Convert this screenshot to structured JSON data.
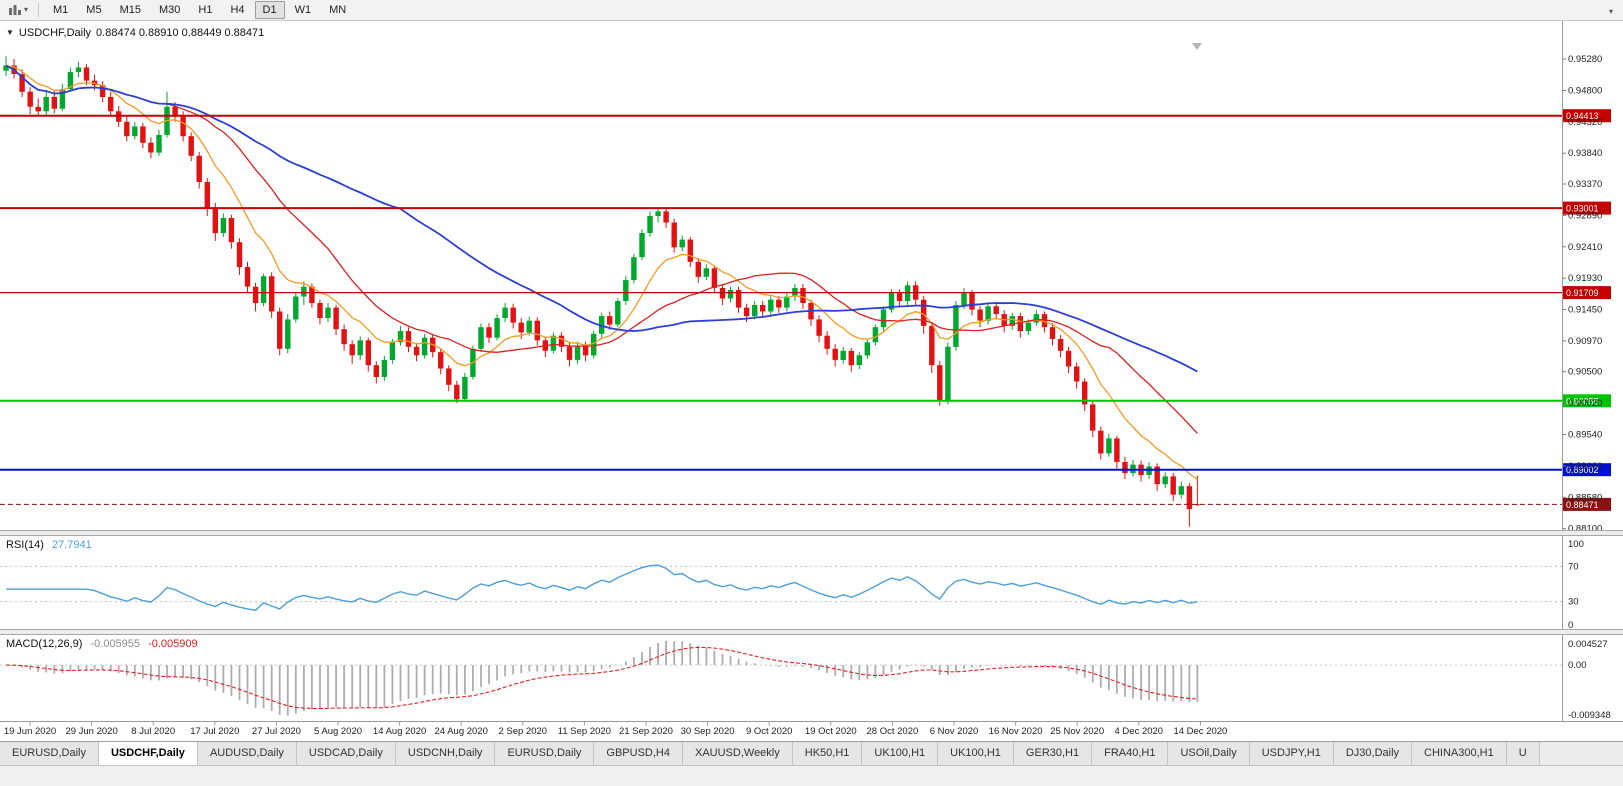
{
  "toolbar": {
    "timeframes": [
      {
        "label": "M1",
        "active": false
      },
      {
        "label": "M5",
        "active": false
      },
      {
        "label": "M15",
        "active": false
      },
      {
        "label": "M30",
        "active": false
      },
      {
        "label": "H1",
        "active": false
      },
      {
        "label": "H4",
        "active": false
      },
      {
        "label": "D1",
        "active": true
      },
      {
        "label": "W1",
        "active": false
      },
      {
        "label": "MN",
        "active": false
      }
    ]
  },
  "chart": {
    "title": "USDCHF,Daily",
    "ohlc_readout": "0.88474 0.88910 0.88449 0.88471"
  },
  "colors": {
    "up": "#00A82D",
    "down": "#E31212",
    "rsi": "#4E9FD8",
    "macd_hist": "#ADADAD",
    "macd_signal": "#DF2020"
  },
  "chart_data": {
    "type": "candlestick",
    "symbol": "USDCHF",
    "timeframe": "Daily",
    "price_range": {
      "max": 0.9554,
      "min": 0.8808
    },
    "price_axis_labels": [
      "0.95280",
      "0.94800",
      "0.94320",
      "0.93840",
      "0.93370",
      "0.92890",
      "0.92410",
      "0.91930",
      "0.91450",
      "0.90970",
      "0.90500",
      "0.90020",
      "0.89540",
      "0.89060",
      "0.88580",
      "0.88100"
    ],
    "date_labels": [
      "19 Jun 2020",
      "29 Jun 2020",
      "8 Jul 2020",
      "17 Jul 2020",
      "27 Jul 2020",
      "5 Aug 2020",
      "14 Aug 2020",
      "24 Aug 2020",
      "2 Sep 2020",
      "11 Sep 2020",
      "21 Sep 2020",
      "30 Sep 2020",
      "9 Oct 2020",
      "19 Oct 2020",
      "28 Oct 2020",
      "6 Nov 2020",
      "16 Nov 2020",
      "25 Nov 2020",
      "4 Dec 2020",
      "14 Dec 2020"
    ],
    "hlines": [
      {
        "price": 0.94413,
        "label": "0.94413",
        "color": "#C40000",
        "width": 2
      },
      {
        "price": 0.93001,
        "label": "0.93001",
        "color": "#C40000",
        "width": 2
      },
      {
        "price": 0.91709,
        "label": "0.91709",
        "color": "#C40000",
        "width": 1.2
      },
      {
        "price": 0.90055,
        "label": "0.90055",
        "color": "#00C400",
        "width": 2
      },
      {
        "price": 0.89002,
        "label": "0.89002",
        "color": "#0010D0",
        "width": 2
      }
    ],
    "current_price": {
      "value": 0.88471,
      "label": "0.88471",
      "color": "#8B1111"
    },
    "moving_averages": [
      {
        "period": 10,
        "type": "ema",
        "color": "#F59A23",
        "width": 1.3
      },
      {
        "period": 21,
        "type": "sma",
        "color": "#DC2020",
        "width": 1.3
      },
      {
        "period": 50,
        "type": "sma",
        "color": "#2B3FD6",
        "width": 1.8
      }
    ],
    "rsi": {
      "label": "RSI(14)",
      "value_text": "27.7941",
      "period": 14,
      "levels": [
        70,
        30
      ],
      "axis_labels": [
        "100",
        "70",
        "30",
        "0"
      ]
    },
    "macd": {
      "label": "MACD(12,26,9)",
      "value_main": "-0.005955",
      "value_signal": "-0.005909",
      "fast": 12,
      "slow": 26,
      "signal": 9,
      "range": {
        "max": 0.004527,
        "min": -0.009348
      },
      "axis_labels": [
        "0.004527",
        "0.00",
        "-0.009348"
      ]
    },
    "candles": [
      [
        0.951,
        0.9532,
        0.9502,
        0.9518
      ],
      [
        0.9518,
        0.9528,
        0.9498,
        0.9505
      ],
      [
        0.9505,
        0.9512,
        0.947,
        0.9478
      ],
      [
        0.9478,
        0.9485,
        0.9444,
        0.9455
      ],
      [
        0.9455,
        0.9468,
        0.9441,
        0.9448
      ],
      [
        0.9448,
        0.9478,
        0.9442,
        0.947
      ],
      [
        0.947,
        0.948,
        0.9445,
        0.9452
      ],
      [
        0.9452,
        0.949,
        0.9448,
        0.9482
      ],
      [
        0.9482,
        0.9515,
        0.9478,
        0.9508
      ],
      [
        0.9508,
        0.9524,
        0.95,
        0.9515
      ],
      [
        0.9515,
        0.952,
        0.9488,
        0.9495
      ],
      [
        0.9495,
        0.9504,
        0.948,
        0.9488
      ],
      [
        0.9488,
        0.9494,
        0.9462,
        0.947
      ],
      [
        0.947,
        0.9478,
        0.944,
        0.9448
      ],
      [
        0.9448,
        0.9456,
        0.9424,
        0.9432
      ],
      [
        0.9432,
        0.944,
        0.9402,
        0.941
      ],
      [
        0.941,
        0.9432,
        0.9405,
        0.9425
      ],
      [
        0.9425,
        0.943,
        0.9392,
        0.94
      ],
      [
        0.94,
        0.9408,
        0.9376,
        0.9385
      ],
      [
        0.9385,
        0.942,
        0.938,
        0.9412
      ],
      [
        0.9412,
        0.9478,
        0.9408,
        0.9455
      ],
      [
        0.9455,
        0.9462,
        0.9432,
        0.944
      ],
      [
        0.944,
        0.9448,
        0.9402,
        0.941
      ],
      [
        0.941,
        0.9416,
        0.9372,
        0.938
      ],
      [
        0.938,
        0.9386,
        0.933,
        0.934
      ],
      [
        0.934,
        0.9346,
        0.9288,
        0.93
      ],
      [
        0.93,
        0.9308,
        0.925,
        0.9262
      ],
      [
        0.9262,
        0.9292,
        0.9256,
        0.9285
      ],
      [
        0.9285,
        0.929,
        0.9238,
        0.9248
      ],
      [
        0.9248,
        0.9254,
        0.9198,
        0.921
      ],
      [
        0.921,
        0.9218,
        0.917,
        0.918
      ],
      [
        0.918,
        0.9186,
        0.9142,
        0.9155
      ],
      [
        0.9155,
        0.92,
        0.915,
        0.9196
      ],
      [
        0.9196,
        0.9202,
        0.9132,
        0.9142
      ],
      [
        0.9142,
        0.9148,
        0.9075,
        0.9085
      ],
      [
        0.9085,
        0.9138,
        0.9078,
        0.913
      ],
      [
        0.913,
        0.9172,
        0.9125,
        0.9165
      ],
      [
        0.9165,
        0.9188,
        0.9152,
        0.918
      ],
      [
        0.918,
        0.9185,
        0.9148,
        0.9155
      ],
      [
        0.9155,
        0.916,
        0.9122,
        0.9132
      ],
      [
        0.9132,
        0.9155,
        0.9126,
        0.9148
      ],
      [
        0.9148,
        0.9152,
        0.9106,
        0.9115
      ],
      [
        0.9115,
        0.9122,
        0.9082,
        0.9092
      ],
      [
        0.9092,
        0.9098,
        0.9062,
        0.9075
      ],
      [
        0.9075,
        0.9104,
        0.9068,
        0.9098
      ],
      [
        0.9098,
        0.9102,
        0.905,
        0.906
      ],
      [
        0.906,
        0.9066,
        0.9032,
        0.9042
      ],
      [
        0.9042,
        0.9074,
        0.9036,
        0.9068
      ],
      [
        0.9068,
        0.91,
        0.9062,
        0.9095
      ],
      [
        0.9095,
        0.912,
        0.909,
        0.9112
      ],
      [
        0.9112,
        0.9118,
        0.908,
        0.9088
      ],
      [
        0.9088,
        0.9094,
        0.9066,
        0.9075
      ],
      [
        0.9075,
        0.9108,
        0.907,
        0.9102
      ],
      [
        0.9102,
        0.9108,
        0.9072,
        0.908
      ],
      [
        0.908,
        0.9086,
        0.9046,
        0.9055
      ],
      [
        0.9055,
        0.906,
        0.902,
        0.903
      ],
      [
        0.903,
        0.9036,
        0.9002,
        0.9008
      ],
      [
        0.9008,
        0.9048,
        0.9004,
        0.9042
      ],
      [
        0.9042,
        0.909,
        0.9038,
        0.9085
      ],
      [
        0.9085,
        0.9124,
        0.908,
        0.9118
      ],
      [
        0.9118,
        0.9124,
        0.9094,
        0.9102
      ],
      [
        0.9102,
        0.9138,
        0.9098,
        0.9132
      ],
      [
        0.9132,
        0.9155,
        0.9126,
        0.9148
      ],
      [
        0.9148,
        0.9154,
        0.9116,
        0.9125
      ],
      [
        0.9125,
        0.9132,
        0.91,
        0.911
      ],
      [
        0.911,
        0.9134,
        0.9105,
        0.9128
      ],
      [
        0.9128,
        0.9133,
        0.909,
        0.9098
      ],
      [
        0.9098,
        0.9104,
        0.9072,
        0.9082
      ],
      [
        0.9082,
        0.911,
        0.9078,
        0.9105
      ],
      [
        0.9105,
        0.911,
        0.908,
        0.9088
      ],
      [
        0.9088,
        0.9094,
        0.9058,
        0.9068
      ],
      [
        0.9068,
        0.9096,
        0.9062,
        0.909
      ],
      [
        0.909,
        0.9096,
        0.9066,
        0.9075
      ],
      [
        0.9075,
        0.9112,
        0.907,
        0.9108
      ],
      [
        0.9108,
        0.914,
        0.9102,
        0.9135
      ],
      [
        0.9135,
        0.9142,
        0.9114,
        0.9122
      ],
      [
        0.9122,
        0.9162,
        0.9118,
        0.9158
      ],
      [
        0.9158,
        0.9196,
        0.9152,
        0.919
      ],
      [
        0.919,
        0.923,
        0.9185,
        0.9225
      ],
      [
        0.9225,
        0.9268,
        0.922,
        0.9262
      ],
      [
        0.9262,
        0.9295,
        0.9256,
        0.9288
      ],
      [
        0.9288,
        0.9301,
        0.9278,
        0.9295
      ],
      [
        0.9295,
        0.93,
        0.927,
        0.9278
      ],
      [
        0.9278,
        0.9284,
        0.9232,
        0.924
      ],
      [
        0.924,
        0.9258,
        0.9234,
        0.9252
      ],
      [
        0.9252,
        0.9256,
        0.921,
        0.9218
      ],
      [
        0.9218,
        0.9224,
        0.9186,
        0.9195
      ],
      [
        0.9195,
        0.9214,
        0.919,
        0.9208
      ],
      [
        0.9208,
        0.9212,
        0.917,
        0.9178
      ],
      [
        0.9178,
        0.9184,
        0.9152,
        0.9162
      ],
      [
        0.9162,
        0.918,
        0.9156,
        0.9175
      ],
      [
        0.9175,
        0.918,
        0.914,
        0.9148
      ],
      [
        0.9148,
        0.9154,
        0.9126,
        0.9135
      ],
      [
        0.9135,
        0.9158,
        0.913,
        0.9152
      ],
      [
        0.9152,
        0.9158,
        0.9134,
        0.9142
      ],
      [
        0.9142,
        0.9165,
        0.9136,
        0.916
      ],
      [
        0.916,
        0.9166,
        0.914,
        0.9148
      ],
      [
        0.9148,
        0.917,
        0.9142,
        0.9165
      ],
      [
        0.9165,
        0.9184,
        0.9158,
        0.9178
      ],
      [
        0.9178,
        0.9184,
        0.9146,
        0.9155
      ],
      [
        0.9155,
        0.916,
        0.912,
        0.913
      ],
      [
        0.913,
        0.9136,
        0.9095,
        0.9105
      ],
      [
        0.9105,
        0.9112,
        0.9076,
        0.9085
      ],
      [
        0.9085,
        0.9092,
        0.9058,
        0.9068
      ],
      [
        0.9068,
        0.9088,
        0.9062,
        0.9082
      ],
      [
        0.9082,
        0.9086,
        0.905,
        0.906
      ],
      [
        0.906,
        0.908,
        0.9054,
        0.9075
      ],
      [
        0.9075,
        0.91,
        0.907,
        0.9095
      ],
      [
        0.9095,
        0.9122,
        0.909,
        0.9118
      ],
      [
        0.9118,
        0.915,
        0.9112,
        0.9145
      ],
      [
        0.9145,
        0.9176,
        0.914,
        0.917
      ],
      [
        0.917,
        0.9176,
        0.9148,
        0.9158
      ],
      [
        0.9158,
        0.9188,
        0.9152,
        0.9182
      ],
      [
        0.9182,
        0.9188,
        0.915,
        0.916
      ],
      [
        0.916,
        0.9166,
        0.9108,
        0.912
      ],
      [
        0.912,
        0.9126,
        0.9048,
        0.906
      ],
      [
        0.906,
        0.9066,
        0.8998,
        0.9005
      ],
      [
        0.9005,
        0.9095,
        0.9,
        0.9088
      ],
      [
        0.9088,
        0.9158,
        0.9082,
        0.9152
      ],
      [
        0.9152,
        0.9178,
        0.9146,
        0.917
      ],
      [
        0.917,
        0.9175,
        0.9136,
        0.9145
      ],
      [
        0.9145,
        0.915,
        0.9118,
        0.9128
      ],
      [
        0.9128,
        0.9156,
        0.9122,
        0.915
      ],
      [
        0.915,
        0.9156,
        0.913,
        0.9138
      ],
      [
        0.9138,
        0.9144,
        0.911,
        0.912
      ],
      [
        0.912,
        0.914,
        0.9114,
        0.9135
      ],
      [
        0.9135,
        0.914,
        0.9102,
        0.9112
      ],
      [
        0.9112,
        0.913,
        0.9106,
        0.9125
      ],
      [
        0.9125,
        0.9144,
        0.912,
        0.9138
      ],
      [
        0.9138,
        0.9142,
        0.911,
        0.9118
      ],
      [
        0.9118,
        0.9124,
        0.909,
        0.91
      ],
      [
        0.91,
        0.9106,
        0.9072,
        0.9082
      ],
      [
        0.9082,
        0.9088,
        0.9048,
        0.9058
      ],
      [
        0.9058,
        0.9064,
        0.9024,
        0.9035
      ],
      [
        0.9035,
        0.904,
        0.899,
        0.9
      ],
      [
        0.9,
        0.9006,
        0.895,
        0.896
      ],
      [
        0.896,
        0.8966,
        0.8916,
        0.8925
      ],
      [
        0.8925,
        0.8955,
        0.892,
        0.8948
      ],
      [
        0.8948,
        0.8952,
        0.8902,
        0.8912
      ],
      [
        0.8912,
        0.892,
        0.8886,
        0.8895
      ],
      [
        0.8895,
        0.8915,
        0.889,
        0.8908
      ],
      [
        0.8908,
        0.8914,
        0.8882,
        0.8892
      ],
      [
        0.8892,
        0.8912,
        0.8886,
        0.8905
      ],
      [
        0.8905,
        0.891,
        0.8868,
        0.8878
      ],
      [
        0.8878,
        0.8896,
        0.8872,
        0.889
      ],
      [
        0.889,
        0.8895,
        0.8852,
        0.8862
      ],
      [
        0.8862,
        0.8882,
        0.8856,
        0.8875
      ],
      [
        0.8875,
        0.888,
        0.8813,
        0.884
      ],
      [
        0.88474,
        0.8891,
        0.88449,
        0.88471
      ]
    ]
  },
  "tabs": [
    {
      "label": "EURUSD,Daily",
      "active": false
    },
    {
      "label": "USDCHF,Daily",
      "active": true
    },
    {
      "label": "AUDUSD,Daily",
      "active": false
    },
    {
      "label": "USDCAD,Daily",
      "active": false
    },
    {
      "label": "USDCNH,Daily",
      "active": false
    },
    {
      "label": "EURUSD,Daily",
      "active": false
    },
    {
      "label": "GBPUSD,H4",
      "active": false
    },
    {
      "label": "XAUUSD,Weekly",
      "active": false
    },
    {
      "label": "HK50,H1",
      "active": false
    },
    {
      "label": "UK100,H1",
      "active": false
    },
    {
      "label": "UK100,H1",
      "active": false
    },
    {
      "label": "GER30,H1",
      "active": false
    },
    {
      "label": "FRA40,H1",
      "active": false
    },
    {
      "label": "USOil,Daily",
      "active": false
    },
    {
      "label": "USDJPY,H1",
      "active": false
    },
    {
      "label": "DJ30,Daily",
      "active": false
    },
    {
      "label": "CHINA300,H1",
      "active": false
    },
    {
      "label": "U",
      "active": false
    }
  ]
}
